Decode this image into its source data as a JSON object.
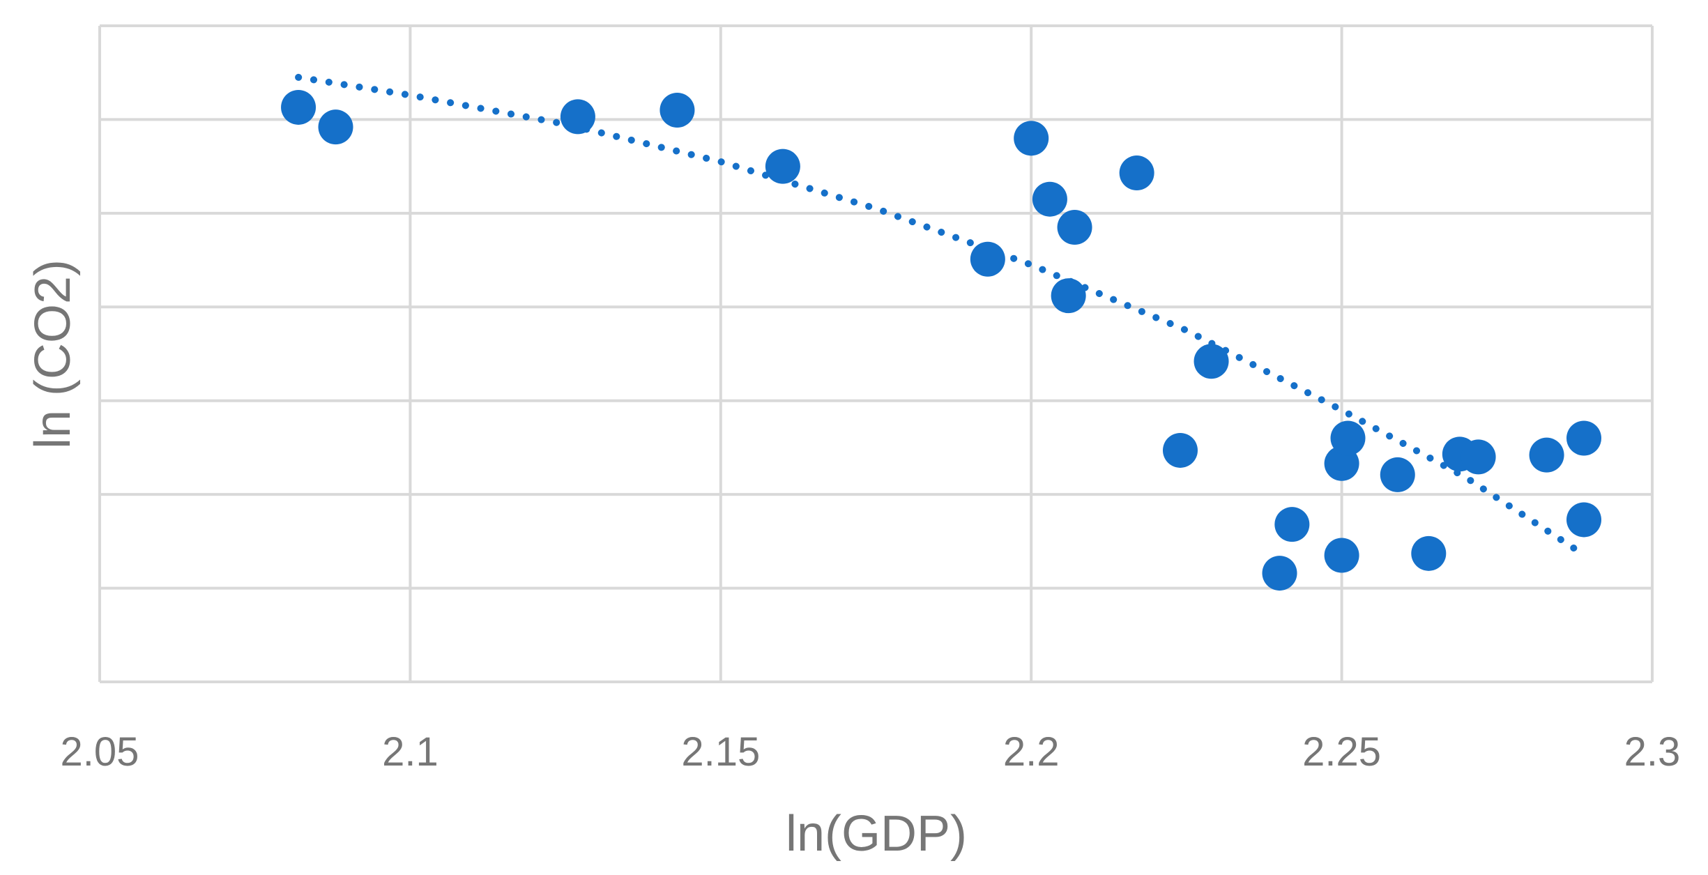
{
  "chart_data": {
    "type": "scatter",
    "title": "",
    "xlabel": "ln(GDP)",
    "ylabel": "ln (CO2)",
    "xlim": [
      2.05,
      2.3
    ],
    "x_ticks": [
      2.05,
      2.1,
      2.15,
      2.2,
      2.25,
      2.3
    ],
    "x_tick_labels": [
      "2.05",
      "2.1",
      "2.15",
      "2.2",
      "2.25",
      "2.3"
    ],
    "ylim": [
      0,
      7
    ],
    "y_gridlines": [
      0,
      1,
      2,
      3,
      4,
      5,
      6,
      7
    ],
    "y_tick_labels_shown": false,
    "grid": true,
    "legend": "none",
    "colors": {
      "series": "#1570c9",
      "grid": "#d9d9d9",
      "text": "#767676"
    },
    "series": [
      {
        "points": [
          {
            "x": 2.082,
            "y": 6.13
          },
          {
            "x": 2.088,
            "y": 5.92
          },
          {
            "x": 2.127,
            "y": 6.03
          },
          {
            "x": 2.143,
            "y": 6.1
          },
          {
            "x": 2.16,
            "y": 5.5
          },
          {
            "x": 2.193,
            "y": 4.51
          },
          {
            "x": 2.2,
            "y": 5.8
          },
          {
            "x": 2.203,
            "y": 5.15
          },
          {
            "x": 2.206,
            "y": 4.12
          },
          {
            "x": 2.207,
            "y": 4.85
          },
          {
            "x": 2.217,
            "y": 5.43
          },
          {
            "x": 2.224,
            "y": 2.47
          },
          {
            "x": 2.229,
            "y": 3.42
          },
          {
            "x": 2.24,
            "y": 1.16
          },
          {
            "x": 2.242,
            "y": 1.68
          },
          {
            "x": 2.25,
            "y": 1.35
          },
          {
            "x": 2.25,
            "y": 2.33
          },
          {
            "x": 2.251,
            "y": 2.6
          },
          {
            "x": 2.259,
            "y": 2.21
          },
          {
            "x": 2.264,
            "y": 1.37
          },
          {
            "x": 2.269,
            "y": 2.43
          },
          {
            "x": 2.272,
            "y": 2.4
          },
          {
            "x": 2.283,
            "y": 2.42
          },
          {
            "x": 2.289,
            "y": 2.6
          },
          {
            "x": 2.289,
            "y": 1.73
          }
        ]
      }
    ],
    "trendline": {
      "style": "dotted",
      "points": [
        {
          "x": 2.082,
          "y": 6.45
        },
        {
          "x": 2.1,
          "y": 6.26
        },
        {
          "x": 2.125,
          "y": 5.95
        },
        {
          "x": 2.15,
          "y": 5.55
        },
        {
          "x": 2.175,
          "y": 5.05
        },
        {
          "x": 2.2,
          "y": 4.45
        },
        {
          "x": 2.225,
          "y": 3.75
        },
        {
          "x": 2.25,
          "y": 2.9
        },
        {
          "x": 2.27,
          "y": 2.18
        },
        {
          "x": 2.288,
          "y": 1.4
        }
      ]
    }
  }
}
